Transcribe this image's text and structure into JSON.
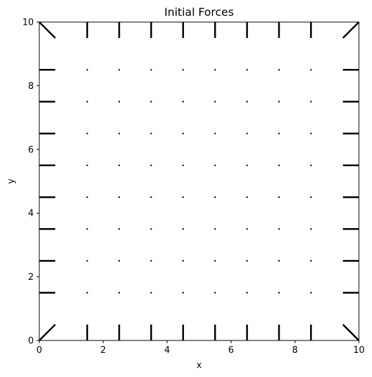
{
  "chart_data": {
    "type": "quiver",
    "title": "Initial Forces",
    "xlabel": "x",
    "ylabel": "y",
    "xlim": [
      0,
      10
    ],
    "ylim": [
      0,
      10
    ],
    "xticks": [
      "0",
      "2",
      "4",
      "6",
      "8",
      "10"
    ],
    "yticks": [
      "0",
      "2",
      "4",
      "6",
      "8",
      "10"
    ],
    "grid": false,
    "legend": false,
    "colors": {
      "segments": "#000000",
      "axes": "#000000",
      "background": "#ffffff"
    },
    "boundary_segments": [
      {
        "x0": 0,
        "y0": 10,
        "x1": 0.5,
        "y1": 9.5
      },
      {
        "x0": 10,
        "y0": 10,
        "x1": 9.5,
        "y1": 9.5
      },
      {
        "x0": 0,
        "y0": 0,
        "x1": 0.5,
        "y1": 0.5
      },
      {
        "x0": 10,
        "y0": 0,
        "x1": 9.5,
        "y1": 0.5
      },
      {
        "x0": 1.5,
        "y0": 10,
        "x1": 1.5,
        "y1": 9.5
      },
      {
        "x0": 2.5,
        "y0": 10,
        "x1": 2.5,
        "y1": 9.5
      },
      {
        "x0": 3.5,
        "y0": 10,
        "x1": 3.5,
        "y1": 9.5
      },
      {
        "x0": 4.5,
        "y0": 10,
        "x1": 4.5,
        "y1": 9.5
      },
      {
        "x0": 5.5,
        "y0": 10,
        "x1": 5.5,
        "y1": 9.5
      },
      {
        "x0": 6.5,
        "y0": 10,
        "x1": 6.5,
        "y1": 9.5
      },
      {
        "x0": 7.5,
        "y0": 10,
        "x1": 7.5,
        "y1": 9.5
      },
      {
        "x0": 8.5,
        "y0": 10,
        "x1": 8.5,
        "y1": 9.5
      },
      {
        "x0": 1.5,
        "y0": 0,
        "x1": 1.5,
        "y1": 0.5
      },
      {
        "x0": 2.5,
        "y0": 0,
        "x1": 2.5,
        "y1": 0.5
      },
      {
        "x0": 3.5,
        "y0": 0,
        "x1": 3.5,
        "y1": 0.5
      },
      {
        "x0": 4.5,
        "y0": 0,
        "x1": 4.5,
        "y1": 0.5
      },
      {
        "x0": 5.5,
        "y0": 0,
        "x1": 5.5,
        "y1": 0.5
      },
      {
        "x0": 6.5,
        "y0": 0,
        "x1": 6.5,
        "y1": 0.5
      },
      {
        "x0": 7.5,
        "y0": 0,
        "x1": 7.5,
        "y1": 0.5
      },
      {
        "x0": 8.5,
        "y0": 0,
        "x1": 8.5,
        "y1": 0.5
      },
      {
        "x0": 0,
        "y0": 8.5,
        "x1": 0.5,
        "y1": 8.5
      },
      {
        "x0": 0,
        "y0": 7.5,
        "x1": 0.5,
        "y1": 7.5
      },
      {
        "x0": 0,
        "y0": 6.5,
        "x1": 0.5,
        "y1": 6.5
      },
      {
        "x0": 0,
        "y0": 5.5,
        "x1": 0.5,
        "y1": 5.5
      },
      {
        "x0": 0,
        "y0": 4.5,
        "x1": 0.5,
        "y1": 4.5
      },
      {
        "x0": 0,
        "y0": 3.5,
        "x1": 0.5,
        "y1": 3.5
      },
      {
        "x0": 0,
        "y0": 2.5,
        "x1": 0.5,
        "y1": 2.5
      },
      {
        "x0": 0,
        "y0": 1.5,
        "x1": 0.5,
        "y1": 1.5
      },
      {
        "x0": 10,
        "y0": 8.5,
        "x1": 9.5,
        "y1": 8.5
      },
      {
        "x0": 10,
        "y0": 7.5,
        "x1": 9.5,
        "y1": 7.5
      },
      {
        "x0": 10,
        "y0": 6.5,
        "x1": 9.5,
        "y1": 6.5
      },
      {
        "x0": 10,
        "y0": 5.5,
        "x1": 9.5,
        "y1": 5.5
      },
      {
        "x0": 10,
        "y0": 4.5,
        "x1": 9.5,
        "y1": 4.5
      },
      {
        "x0": 10,
        "y0": 3.5,
        "x1": 9.5,
        "y1": 3.5
      },
      {
        "x0": 10,
        "y0": 2.5,
        "x1": 9.5,
        "y1": 2.5
      },
      {
        "x0": 10,
        "y0": 1.5,
        "x1": 9.5,
        "y1": 1.5
      }
    ],
    "interior_points": {
      "x": [
        1.5,
        2.5,
        3.5,
        4.5,
        5.5,
        6.5,
        7.5,
        8.5
      ],
      "y": [
        1.5,
        2.5,
        3.5,
        4.5,
        5.5,
        6.5,
        7.5,
        8.5
      ],
      "magnitude": 0
    }
  }
}
